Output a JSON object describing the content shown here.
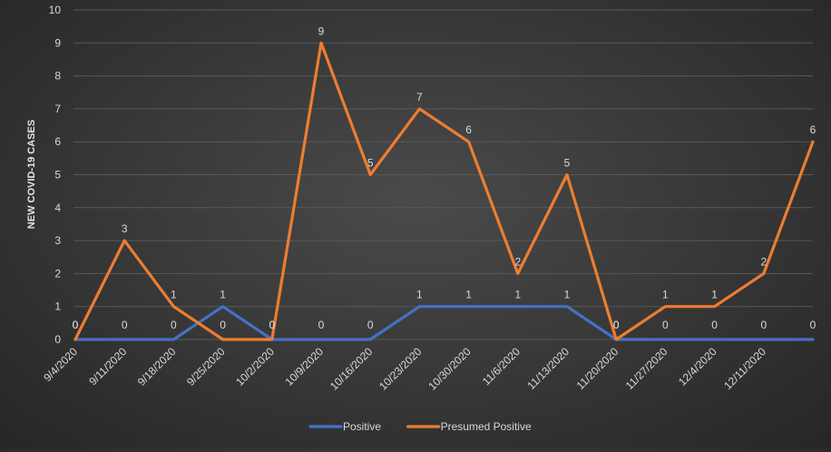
{
  "chart_data": {
    "type": "line",
    "title": "",
    "xlabel": "",
    "ylabel": "NEW COVID-19 CASES",
    "ylim": [
      0,
      10
    ],
    "yticks": [
      "0",
      "1",
      "2",
      "3",
      "4",
      "5",
      "6",
      "7",
      "8",
      "9",
      "10"
    ],
    "grid": true,
    "legend_position": "bottom",
    "categories": [
      "9/4/2020",
      "9/11/2020",
      "9/18/2020",
      "9/25/2020",
      "10/2/2020",
      "10/9/2020",
      "10/16/2020",
      "10/23/2020",
      "10/30/2020",
      "11/6/2020",
      "11/13/2020",
      "11/20/2020",
      "11/27/2020",
      "12/4/2020",
      "12/11/2020",
      ""
    ],
    "series": [
      {
        "name": "Positive",
        "color": "#4472c4",
        "values": [
          0,
          0,
          0,
          1,
          0,
          0,
          0,
          1,
          1,
          1,
          1,
          0,
          0,
          0,
          0,
          0
        ]
      },
      {
        "name": "Presumed Positive",
        "color": "#ed7d31",
        "values": [
          0,
          3,
          1,
          0,
          0,
          9,
          5,
          7,
          6,
          2,
          5,
          0,
          1,
          1,
          2,
          6
        ]
      }
    ]
  }
}
